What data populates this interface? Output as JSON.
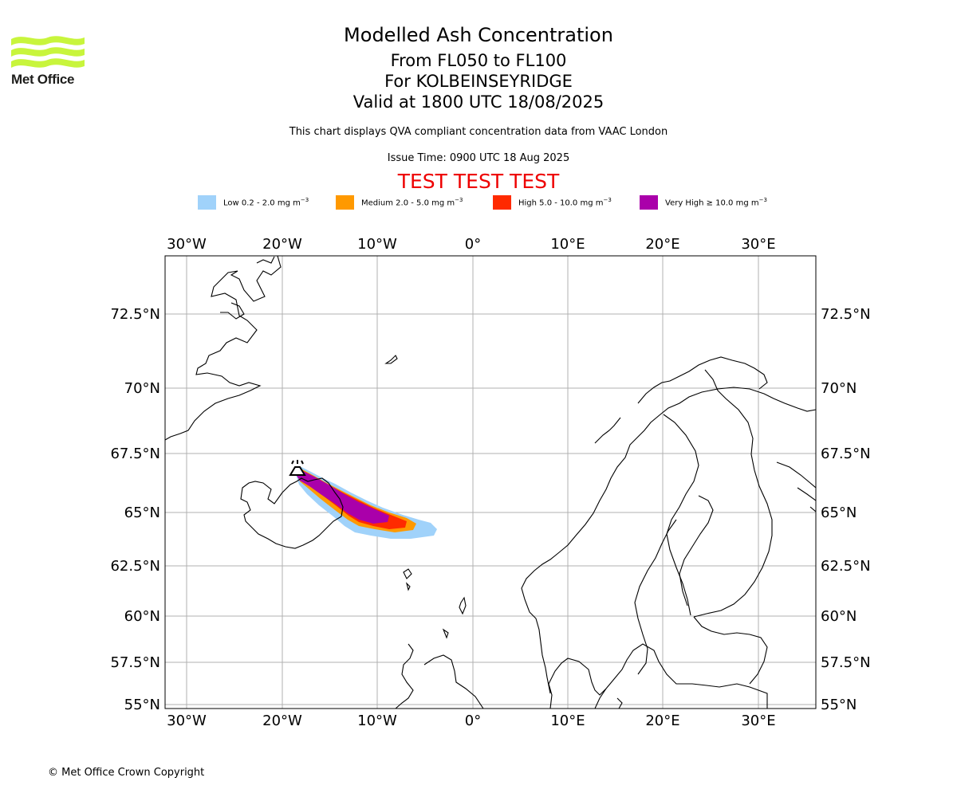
{
  "logo": {
    "text": "Met Office",
    "icon": "met-office-wave-logo",
    "color": "#c8f53c"
  },
  "header": {
    "title": "Modelled Ash Concentration",
    "levels": "From FL050 to FL100",
    "location": "For KOLBEINSEYRIDGE",
    "valid": "Valid at 1800 UTC 18/08/2025",
    "compliance": "This chart displays QVA compliant concentration data from VAAC London",
    "issue": "Issue Time: 0900 UTC 18 Aug 2025",
    "test_banner": "TEST TEST TEST"
  },
  "legend": [
    {
      "label_main": "Low 0.2 - 2.0 mg m",
      "exp": "−3",
      "color": "#a0d2fa"
    },
    {
      "label_main": "Medium 2.0 - 5.0 mg m",
      "exp": "−3",
      "color": "#ff9900"
    },
    {
      "label_main": "High 5.0 - 10.0 mg m",
      "exp": "−3",
      "color": "#ff2a00"
    },
    {
      "label_main": "Very High  ≥  10.0 mg m",
      "exp": "−3",
      "color": "#aa00aa"
    }
  ],
  "map": {
    "lon_ticks": [
      "30°W",
      "20°W",
      "10°W",
      "0°",
      "10°E",
      "20°E",
      "30°E"
    ],
    "lat_ticks": [
      "72.5°N",
      "70°N",
      "67.5°N",
      "65°N",
      "62.5°N",
      "60°N",
      "57.5°N",
      "55°N"
    ],
    "volcano_marker": "volcano-icon",
    "grid": true
  },
  "footer": {
    "copyright": "© Met Office Crown Copyright"
  }
}
